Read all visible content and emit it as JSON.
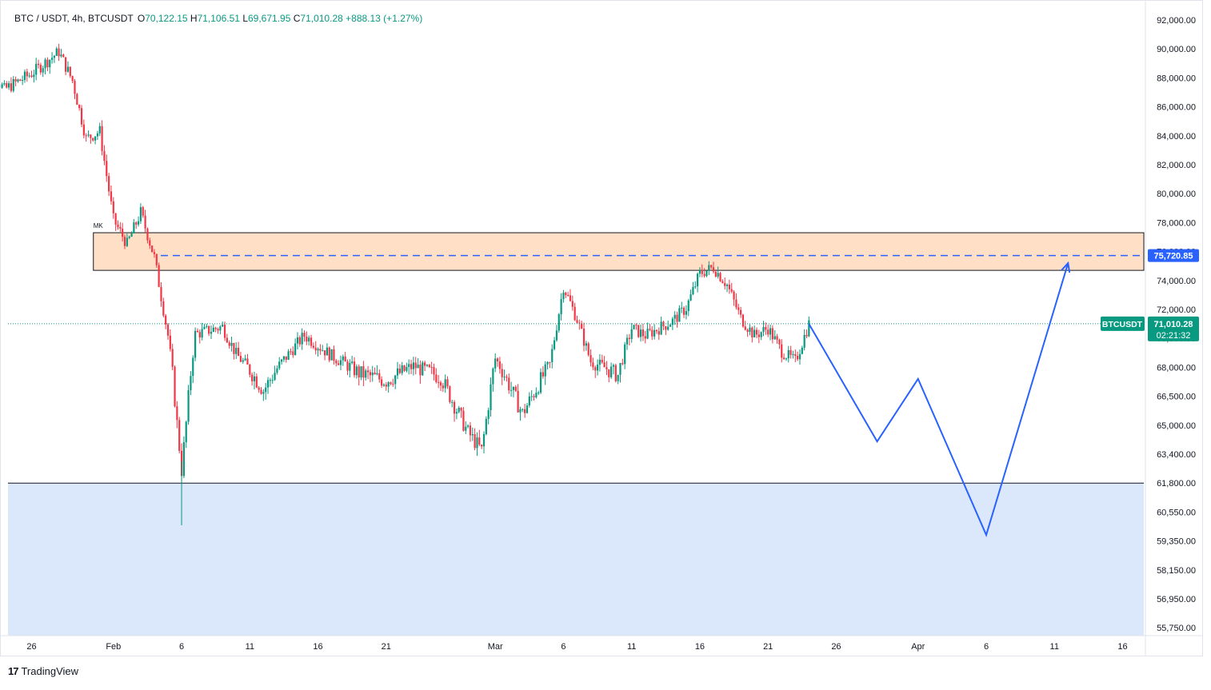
{
  "header": {
    "symbol": "BTC / USDT, 4h, BTCUSDT",
    "o_label": "O",
    "o_value": "70,122.15",
    "h_label": "H",
    "h_value": "71,106.51",
    "l_label": "L",
    "l_value": "69,671.95",
    "c_label": "C",
    "c_value": "71,010.28",
    "change": "+888.13 (+1.27%)"
  },
  "branding": {
    "logo_mark": "17",
    "logo_text": "TradingView"
  },
  "colors": {
    "up": "#089981",
    "down": "#f23645",
    "projection": "#2962ff",
    "supply_zone": "#ffe0c7",
    "demand_zone": "#dbe7fb"
  },
  "chart_data": {
    "type": "candlestick",
    "timeframe": "4h",
    "x_tick_labels": [
      "26",
      "Feb",
      "6",
      "11",
      "16",
      "21",
      "Mar",
      "6",
      "11",
      "16",
      "21",
      "26",
      "Apr",
      "6",
      "11",
      "16"
    ],
    "y_tick_labels": [
      "92,000.00",
      "90,000.00",
      "88,000.00",
      "86,000.00",
      "84,000.00",
      "82,000.00",
      "80,000.00",
      "78,000.00",
      "76,000.00",
      "74,000.00",
      "72,000.00",
      "70,000.00",
      "68,000.00",
      "66,500.00",
      "65,000.00",
      "63,400.00",
      "61,800.00",
      "60,550.00",
      "59,350.00",
      "58,150.00",
      "56,950.00",
      "55,750.00"
    ],
    "close_path": [
      {
        "date": "Jan 22",
        "close": 89600
      },
      {
        "date": "Jan 24",
        "close": 87200
      },
      {
        "date": "Jan 26",
        "close": 88300
      },
      {
        "date": "Jan 28",
        "close": 89800
      },
      {
        "date": "Jan 29",
        "close": 87800
      },
      {
        "date": "Jan 30",
        "close": 83800
      },
      {
        "date": "Jan 31",
        "close": 84300
      },
      {
        "date": "Feb 1",
        "close": 78200
      },
      {
        "date": "Feb 2",
        "close": 76500
      },
      {
        "date": "Feb 3",
        "close": 78700
      },
      {
        "date": "Feb 4",
        "close": 75600
      },
      {
        "date": "Feb 5",
        "close": 70200
      },
      {
        "date": "Feb 6",
        "close": 62500
      },
      {
        "date": "Feb 7",
        "close": 70300
      },
      {
        "date": "Feb 9",
        "close": 70800
      },
      {
        "date": "Feb 10",
        "close": 68900
      },
      {
        "date": "Feb 12",
        "close": 66800
      },
      {
        "date": "Feb 14",
        "close": 69100
      },
      {
        "date": "Feb 15",
        "close": 70200
      },
      {
        "date": "Feb 17",
        "close": 68800
      },
      {
        "date": "Feb 19",
        "close": 67700
      },
      {
        "date": "Feb 21",
        "close": 67300
      },
      {
        "date": "Feb 23",
        "close": 68100
      },
      {
        "date": "Feb 25",
        "close": 67500
      },
      {
        "date": "Feb 27",
        "close": 64600
      },
      {
        "date": "Feb 28",
        "close": 63600
      },
      {
        "date": "Mar 1",
        "close": 68600
      },
      {
        "date": "Mar 3",
        "close": 65600
      },
      {
        "date": "Mar 4",
        "close": 66900
      },
      {
        "date": "Mar 5",
        "close": 68200
      },
      {
        "date": "Mar 6",
        "close": 73600
      },
      {
        "date": "Mar 7",
        "close": 71300
      },
      {
        "date": "Mar 8",
        "close": 68400
      },
      {
        "date": "Mar 10",
        "close": 67600
      },
      {
        "date": "Mar 11",
        "close": 70700
      },
      {
        "date": "Mar 12",
        "close": 70200
      },
      {
        "date": "Mar 14",
        "close": 71200
      },
      {
        "date": "Mar 15",
        "close": 72100
      },
      {
        "date": "Mar 16",
        "close": 74500
      },
      {
        "date": "Mar 17",
        "close": 74900
      },
      {
        "date": "Mar 18",
        "close": 73700
      },
      {
        "date": "Mar 19",
        "close": 71400
      },
      {
        "date": "Mar 20",
        "close": 70200
      },
      {
        "date": "Mar 21",
        "close": 70700
      },
      {
        "date": "Mar 22",
        "close": 69100
      },
      {
        "date": "Mar 23",
        "close": 68400
      },
      {
        "date": "Mar 24",
        "close": 71010
      }
    ],
    "supply_zone": {
      "from": 74700,
      "to": 77300,
      "start": "Jan 31"
    },
    "demand_zone": {
      "from": 55600,
      "to": 61800,
      "start": "Jan 22"
    },
    "support_line": 61800,
    "dashed_level": 75720.85,
    "dashed_level_label": "75,720.85",
    "zone_label": "MK",
    "projection": [
      {
        "date": "Mar 24",
        "price": 71000
      },
      {
        "date": "Mar 29",
        "price": 64100
      },
      {
        "date": "Apr 1",
        "price": 67400
      },
      {
        "date": "Apr 6",
        "price": 59600
      },
      {
        "date": "Apr 12",
        "price": 75200
      }
    ],
    "price_tag": {
      "symbol": "BTCUSDT",
      "price": "71,010.28",
      "countdown": "02:21:32"
    },
    "last_price": 71010.28
  }
}
